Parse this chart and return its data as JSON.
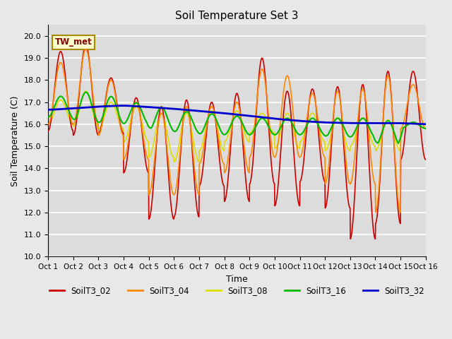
{
  "title": "Soil Temperature Set 3",
  "xlabel": "Time",
  "ylabel": "Soil Temperature (C)",
  "ylim": [
    10.0,
    20.5
  ],
  "yticks": [
    10.0,
    11.0,
    12.0,
    13.0,
    14.0,
    15.0,
    16.0,
    17.0,
    18.0,
    19.0,
    20.0
  ],
  "x_labels": [
    "Oct 1",
    "Oct 2",
    "Oct 3",
    "Oct 4",
    "Oct 5",
    "Oct 6",
    "Oct 7",
    "Oct 8",
    "Oct 9",
    "Oct 10",
    "Oct 11",
    "Oct 12",
    "Oct 13",
    "Oct 14",
    "Oct 15",
    "Oct 16"
  ],
  "annotation_text": "TW_met",
  "bg_color": "#dcdcdc",
  "grid_color": "#ffffff",
  "fig_bg": "#e8e8e8",
  "series": {
    "SoilT3_02": {
      "color": "#cc0000",
      "lw": 1.2
    },
    "SoilT3_04": {
      "color": "#ff8800",
      "lw": 1.2
    },
    "SoilT3_08": {
      "color": "#dddd00",
      "lw": 1.2
    },
    "SoilT3_16": {
      "color": "#00bb00",
      "lw": 1.5
    },
    "SoilT3_32": {
      "color": "#0000cc",
      "lw": 2.0
    }
  },
  "days": 15
}
